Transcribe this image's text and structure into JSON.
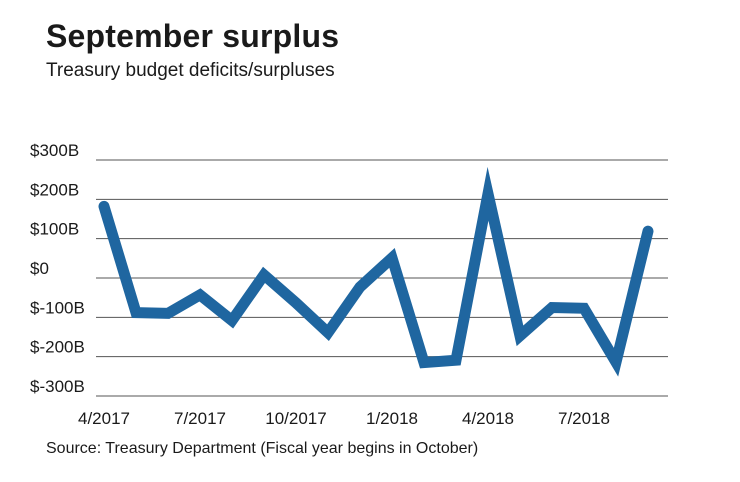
{
  "title": "September surplus",
  "subtitle": "Treasury budget deficits/surpluses",
  "source": "Source: Treasury Department (Fiscal year begins in October)",
  "chart_data": {
    "type": "line",
    "title": "September surplus",
    "subtitle": "Treasury budget deficits/surpluses",
    "xlabel": "",
    "ylabel": "",
    "x": [
      "2017-04",
      "2017-05",
      "2017-06",
      "2017-07",
      "2017-08",
      "2017-09",
      "2017-10",
      "2017-11",
      "2017-12",
      "2018-01",
      "2018-02",
      "2018-03",
      "2018-04",
      "2018-05",
      "2018-06",
      "2018-07",
      "2018-08",
      "2018-09"
    ],
    "series": [
      {
        "values": [
          182,
          -88,
          -90,
          -43,
          -108,
          8,
          -63,
          -139,
          -23,
          51,
          -215,
          -209,
          214,
          -147,
          -75,
          -77,
          -214,
          119
        ]
      }
    ],
    "ylim": [
      -300,
      300
    ],
    "yticks": [
      300,
      200,
      100,
      0,
      -100,
      -200,
      -300
    ],
    "ytick_labels": [
      "$300B",
      "$200B",
      "$100B",
      "$0",
      "$-100B",
      "$-200B",
      "$-300B"
    ],
    "xtick_labels": [
      {
        "at": "2017-04",
        "label": "4/2017"
      },
      {
        "at": "2017-07",
        "label": "7/2017"
      },
      {
        "at": "2017-10",
        "label": "10/2017"
      },
      {
        "at": "2018-01",
        "label": "1/2018"
      },
      {
        "at": "2018-04",
        "label": "4/2018"
      },
      {
        "at": "2018-07",
        "label": "7/2018"
      }
    ],
    "grid": true,
    "line_color": "#1f66a0",
    "grid_color": "#555555"
  }
}
